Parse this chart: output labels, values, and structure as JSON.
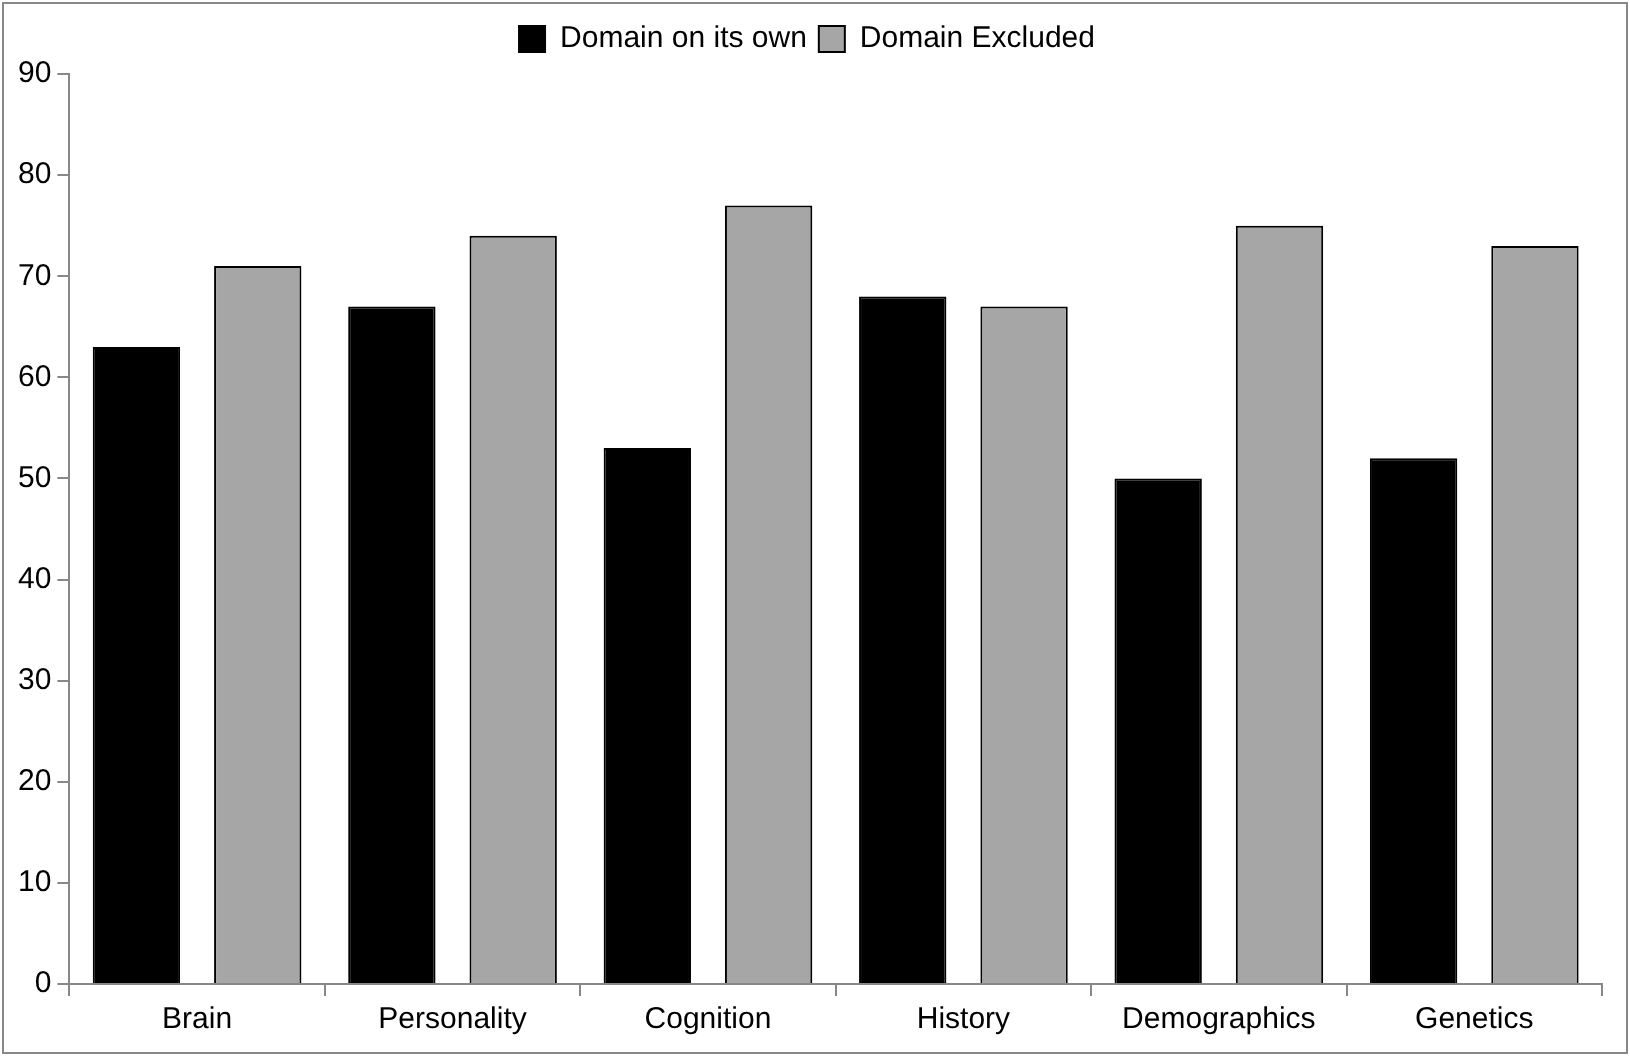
{
  "chart_data": {
    "type": "bar",
    "categories": [
      "Brain",
      "Personality",
      "Cognition",
      "History",
      "Demographics",
      "Genetics"
    ],
    "series": [
      {
        "name": "Domain on its own",
        "color": "#000000",
        "values": [
          63,
          67,
          53,
          68,
          50,
          52
        ]
      },
      {
        "name": "Domain Excluded",
        "color": "#a6a6a6",
        "values": [
          71,
          74,
          77,
          67,
          75,
          73
        ]
      }
    ],
    "ylim": [
      0,
      90
    ],
    "yticks": [
      0,
      10,
      20,
      30,
      40,
      50,
      60,
      70,
      80,
      90
    ],
    "grid": false,
    "legend": "top"
  }
}
